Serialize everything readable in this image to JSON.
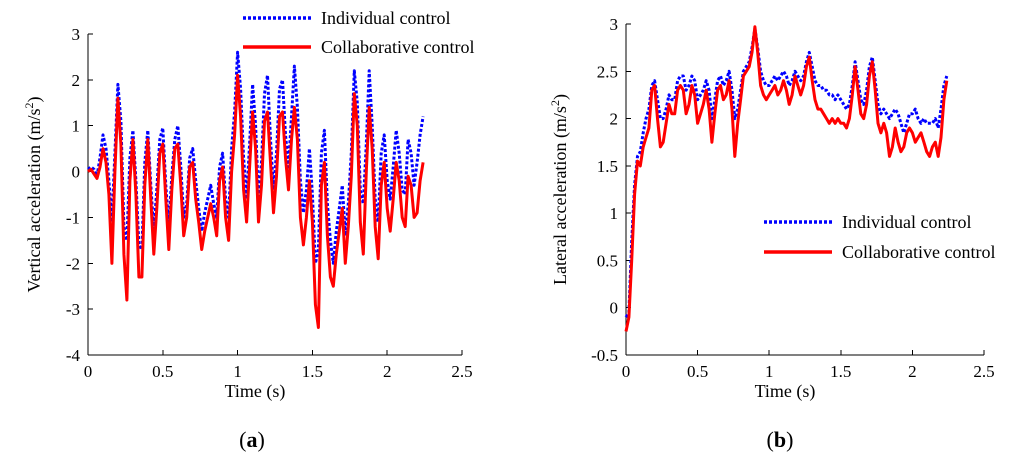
{
  "chart_data": [
    {
      "type": "line",
      "panel_label_open": "(",
      "panel_label": "a",
      "panel_label_close": ")",
      "xlabel": "Time (s)",
      "ylabel": "Vertical acceleration (m/s",
      "ylabel_sup": "2",
      "ylabel_close": ")",
      "xlim": [
        0,
        2.5
      ],
      "ylim": [
        -4,
        3
      ],
      "xticks": [
        0,
        0.5,
        1,
        1.5,
        2,
        2.5
      ],
      "xtick_labels": [
        "0",
        "0.5",
        "1",
        "1.5",
        "2",
        "2.5"
      ],
      "yticks": [
        -4,
        -3,
        -2,
        -1,
        0,
        1,
        2,
        3
      ],
      "ytick_labels": [
        "-4",
        "-3",
        "-2",
        "-1",
        "0",
        "1",
        "2",
        "3"
      ],
      "legend_position": "top-right",
      "series": [
        {
          "name": "Individual control",
          "color": "#0000ff",
          "style": "dotted",
          "x": [
            0,
            0.02,
            0.04,
            0.06,
            0.08,
            0.1,
            0.12,
            0.14,
            0.16,
            0.18,
            0.2,
            0.22,
            0.24,
            0.26,
            0.28,
            0.3,
            0.32,
            0.34,
            0.36,
            0.38,
            0.4,
            0.42,
            0.44,
            0.46,
            0.48,
            0.5,
            0.52,
            0.54,
            0.56,
            0.58,
            0.6,
            0.62,
            0.64,
            0.66,
            0.68,
            0.7,
            0.72,
            0.74,
            0.76,
            0.78,
            0.8,
            0.82,
            0.84,
            0.86,
            0.88,
            0.9,
            0.92,
            0.94,
            0.96,
            0.98,
            1.0,
            1.02,
            1.04,
            1.06,
            1.08,
            1.1,
            1.12,
            1.14,
            1.16,
            1.18,
            1.2,
            1.22,
            1.24,
            1.26,
            1.28,
            1.3,
            1.32,
            1.34,
            1.36,
            1.38,
            1.4,
            1.42,
            1.44,
            1.46,
            1.48,
            1.5,
            1.52,
            1.54,
            1.56,
            1.58,
            1.6,
            1.62,
            1.64,
            1.66,
            1.68,
            1.7,
            1.72,
            1.74,
            1.76,
            1.78,
            1.8,
            1.82,
            1.84,
            1.86,
            1.88,
            1.9,
            1.92,
            1.94,
            1.96,
            1.98,
            2.0,
            2.02,
            2.04,
            2.06,
            2.08,
            2.1,
            2.12,
            2.14,
            2.16,
            2.18,
            2.2,
            2.22,
            2.24
          ],
          "values": [
            0.05,
            0.1,
            0.05,
            -0.1,
            0.3,
            0.8,
            0.5,
            -0.2,
            -1.1,
            0.4,
            1.9,
            1.1,
            -1.2,
            -1.5,
            0.3,
            0.9,
            -0.2,
            -1.6,
            -1.7,
            0.2,
            0.9,
            -0.3,
            -1.3,
            -0.4,
            0.7,
            0.95,
            -0.3,
            -1.2,
            -0.1,
            0.7,
            1.0,
            0.1,
            -1.0,
            -0.7,
            0.3,
            0.5,
            -0.2,
            -0.8,
            -1.3,
            -0.9,
            -0.6,
            -0.3,
            -0.7,
            -1.0,
            0.1,
            0.4,
            -0.6,
            -1.0,
            0.5,
            1.3,
            2.6,
            1.8,
            0.3,
            -0.6,
            0.6,
            1.9,
            1.0,
            -0.6,
            0.2,
            1.7,
            2.1,
            0.7,
            -0.4,
            0.4,
            1.8,
            2.0,
            0.8,
            0.1,
            1.2,
            2.3,
            1.4,
            -0.2,
            -0.9,
            -0.4,
            0.5,
            -0.5,
            -2.0,
            -1.7,
            0.4,
            0.9,
            -0.7,
            -1.5,
            -2.0,
            -1.3,
            -0.8,
            -0.3,
            -1.4,
            -0.7,
            0.4,
            2.2,
            1.5,
            -0.4,
            -0.7,
            0.6,
            2.2,
            1.0,
            -0.6,
            -1.1,
            0.4,
            0.8,
            -0.2,
            -0.6,
            0.1,
            0.9,
            0.4,
            -0.4,
            -0.5,
            0.7,
            0.4,
            -0.3,
            0.2,
            0.8,
            1.2
          ]
        },
        {
          "name": "Collaborative control",
          "color": "#ff0000",
          "style": "solid",
          "x": [
            0,
            0.02,
            0.04,
            0.06,
            0.08,
            0.1,
            0.12,
            0.14,
            0.16,
            0.18,
            0.2,
            0.22,
            0.24,
            0.26,
            0.28,
            0.3,
            0.32,
            0.34,
            0.36,
            0.38,
            0.4,
            0.42,
            0.44,
            0.46,
            0.48,
            0.5,
            0.52,
            0.54,
            0.56,
            0.58,
            0.6,
            0.62,
            0.64,
            0.66,
            0.68,
            0.7,
            0.72,
            0.74,
            0.76,
            0.78,
            0.8,
            0.82,
            0.84,
            0.86,
            0.88,
            0.9,
            0.92,
            0.94,
            0.96,
            0.98,
            1.0,
            1.02,
            1.04,
            1.06,
            1.08,
            1.1,
            1.12,
            1.14,
            1.16,
            1.18,
            1.2,
            1.22,
            1.24,
            1.26,
            1.28,
            1.3,
            1.32,
            1.34,
            1.36,
            1.38,
            1.4,
            1.42,
            1.44,
            1.46,
            1.48,
            1.5,
            1.52,
            1.54,
            1.56,
            1.58,
            1.6,
            1.62,
            1.64,
            1.66,
            1.68,
            1.7,
            1.72,
            1.74,
            1.76,
            1.78,
            1.8,
            1.82,
            1.84,
            1.86,
            1.88,
            1.9,
            1.92,
            1.94,
            1.96,
            1.98,
            2.0,
            2.02,
            2.04,
            2.06,
            2.08,
            2.1,
            2.12,
            2.14,
            2.16,
            2.18,
            2.2,
            2.22,
            2.24
          ],
          "values": [
            0.0,
            0.05,
            -0.05,
            -0.15,
            0.1,
            0.5,
            0.2,
            -0.5,
            -2.0,
            0.0,
            1.6,
            0.6,
            -1.8,
            -2.8,
            -0.2,
            0.7,
            -0.5,
            -2.3,
            -2.3,
            -0.3,
            0.7,
            -0.6,
            -1.8,
            -0.8,
            0.4,
            0.6,
            -0.6,
            -1.7,
            -0.4,
            0.5,
            0.6,
            -0.3,
            -1.4,
            -1.0,
            0.1,
            0.2,
            -0.6,
            -1.1,
            -1.7,
            -1.3,
            -1.0,
            -0.7,
            -1.0,
            -1.4,
            -0.2,
            0.1,
            -1.0,
            -1.5,
            0.0,
            0.8,
            2.1,
            1.2,
            -0.4,
            -1.1,
            0.1,
            1.3,
            0.5,
            -1.1,
            -0.3,
            1.1,
            1.3,
            0.2,
            -0.9,
            -0.1,
            1.2,
            1.3,
            0.3,
            -0.4,
            0.7,
            1.4,
            0.7,
            -1.0,
            -1.6,
            -1.0,
            -0.2,
            -1.1,
            -2.9,
            -3.4,
            -0.3,
            0.2,
            -1.4,
            -2.3,
            -2.5,
            -1.8,
            -1.3,
            -0.8,
            -2.0,
            -1.2,
            -0.1,
            1.7,
            1.0,
            -1.1,
            -1.8,
            0.0,
            1.4,
            0.5,
            -1.2,
            -1.9,
            -0.3,
            0.2,
            -0.8,
            -1.3,
            -0.6,
            0.2,
            -0.2,
            -1.0,
            -1.2,
            -0.1,
            -0.3,
            -1.0,
            -0.9,
            -0.2,
            0.2
          ]
        }
      ]
    },
    {
      "type": "line",
      "panel_label_open": "(",
      "panel_label": "b",
      "panel_label_close": ")",
      "xlabel": "Time (s)",
      "ylabel": "Lateral acceleration (m/s",
      "ylabel_sup": "2",
      "ylabel_close": ")",
      "xlim": [
        0,
        2.5
      ],
      "ylim": [
        -0.5,
        3
      ],
      "xticks": [
        0,
        0.5,
        1,
        1.5,
        2,
        2.5
      ],
      "xtick_labels": [
        "0",
        "0.5",
        "1",
        "1.5",
        "2",
        "2.5"
      ],
      "yticks": [
        -0.5,
        0,
        0.5,
        1,
        1.5,
        2,
        2.5,
        3
      ],
      "ytick_labels": [
        "-0.5",
        "0",
        "0.5",
        "1",
        "1.5",
        "2",
        "2.5",
        "3"
      ],
      "legend_position": "center-right",
      "series": [
        {
          "name": "Individual control",
          "color": "#0000ff",
          "style": "dotted",
          "x": [
            0,
            0.02,
            0.04,
            0.06,
            0.08,
            0.1,
            0.12,
            0.14,
            0.16,
            0.18,
            0.2,
            0.22,
            0.24,
            0.26,
            0.28,
            0.3,
            0.32,
            0.34,
            0.36,
            0.38,
            0.4,
            0.42,
            0.44,
            0.46,
            0.48,
            0.5,
            0.52,
            0.54,
            0.56,
            0.58,
            0.6,
            0.62,
            0.64,
            0.66,
            0.68,
            0.7,
            0.72,
            0.74,
            0.76,
            0.78,
            0.8,
            0.82,
            0.84,
            0.86,
            0.88,
            0.9,
            0.92,
            0.94,
            0.96,
            0.98,
            1.0,
            1.02,
            1.04,
            1.06,
            1.08,
            1.1,
            1.12,
            1.14,
            1.16,
            1.18,
            1.2,
            1.22,
            1.24,
            1.26,
            1.28,
            1.3,
            1.32,
            1.34,
            1.36,
            1.38,
            1.4,
            1.42,
            1.44,
            1.46,
            1.48,
            1.5,
            1.52,
            1.54,
            1.56,
            1.58,
            1.6,
            1.62,
            1.64,
            1.66,
            1.68,
            1.7,
            1.72,
            1.74,
            1.76,
            1.78,
            1.8,
            1.82,
            1.84,
            1.86,
            1.88,
            1.9,
            1.92,
            1.94,
            1.96,
            1.98,
            2.0,
            2.02,
            2.04,
            2.06,
            2.08,
            2.1,
            2.12,
            2.14,
            2.16,
            2.18,
            2.2,
            2.22,
            2.24
          ],
          "values": [
            -0.1,
            -0.05,
            0.7,
            1.3,
            1.6,
            1.65,
            1.85,
            2.0,
            2.1,
            2.35,
            2.4,
            2.2,
            2.0,
            2.0,
            2.1,
            2.25,
            2.2,
            2.2,
            2.4,
            2.45,
            2.45,
            2.3,
            2.35,
            2.45,
            2.4,
            2.2,
            2.25,
            2.3,
            2.4,
            2.3,
            2.0,
            2.2,
            2.4,
            2.45,
            2.35,
            2.4,
            2.5,
            2.3,
            2.0,
            2.1,
            2.3,
            2.5,
            2.55,
            2.6,
            2.75,
            2.95,
            2.75,
            2.5,
            2.4,
            2.35,
            2.35,
            2.4,
            2.45,
            2.4,
            2.45,
            2.5,
            2.45,
            2.35,
            2.4,
            2.5,
            2.45,
            2.4,
            2.45,
            2.6,
            2.7,
            2.55,
            2.4,
            2.35,
            2.35,
            2.3,
            2.3,
            2.25,
            2.25,
            2.2,
            2.25,
            2.2,
            2.15,
            2.1,
            2.15,
            2.35,
            2.6,
            2.4,
            2.2,
            2.15,
            2.3,
            2.55,
            2.65,
            2.4,
            2.15,
            2.05,
            2.1,
            2.05,
            2.0,
            2.05,
            2.1,
            2.05,
            1.95,
            1.85,
            1.95,
            2.05,
            2.05,
            2.1,
            2.0,
            1.95,
            2.0,
            1.95,
            1.95,
            1.95,
            2.0,
            1.9,
            2.1,
            2.35,
            2.45
          ]
        },
        {
          "name": "Collaborative control",
          "color": "#ff0000",
          "style": "solid",
          "x": [
            0,
            0.02,
            0.04,
            0.06,
            0.08,
            0.1,
            0.12,
            0.14,
            0.16,
            0.18,
            0.2,
            0.22,
            0.24,
            0.26,
            0.28,
            0.3,
            0.32,
            0.34,
            0.36,
            0.38,
            0.4,
            0.42,
            0.44,
            0.46,
            0.48,
            0.5,
            0.52,
            0.54,
            0.56,
            0.58,
            0.6,
            0.62,
            0.64,
            0.66,
            0.68,
            0.7,
            0.72,
            0.74,
            0.76,
            0.78,
            0.8,
            0.82,
            0.84,
            0.86,
            0.88,
            0.9,
            0.92,
            0.94,
            0.96,
            0.98,
            1.0,
            1.02,
            1.04,
            1.06,
            1.08,
            1.1,
            1.12,
            1.14,
            1.16,
            1.18,
            1.2,
            1.22,
            1.24,
            1.26,
            1.28,
            1.3,
            1.32,
            1.34,
            1.36,
            1.38,
            1.4,
            1.42,
            1.44,
            1.46,
            1.48,
            1.5,
            1.52,
            1.54,
            1.56,
            1.58,
            1.6,
            1.62,
            1.64,
            1.66,
            1.68,
            1.7,
            1.72,
            1.74,
            1.76,
            1.78,
            1.8,
            1.82,
            1.84,
            1.86,
            1.88,
            1.9,
            1.92,
            1.94,
            1.96,
            1.98,
            2.0,
            2.02,
            2.04,
            2.06,
            2.08,
            2.1,
            2.12,
            2.14,
            2.16,
            2.18,
            2.2,
            2.22,
            2.24
          ],
          "values": [
            -0.25,
            -0.1,
            0.5,
            1.2,
            1.55,
            1.5,
            1.7,
            1.8,
            1.9,
            2.3,
            2.35,
            2.0,
            1.7,
            1.75,
            1.95,
            2.15,
            2.05,
            2.05,
            2.3,
            2.35,
            2.3,
            2.05,
            2.15,
            2.35,
            2.25,
            1.95,
            2.05,
            2.15,
            2.3,
            2.1,
            1.75,
            2.05,
            2.3,
            2.35,
            2.2,
            2.25,
            2.4,
            2.1,
            1.6,
            1.95,
            2.2,
            2.45,
            2.5,
            2.55,
            2.7,
            2.97,
            2.7,
            2.35,
            2.25,
            2.2,
            2.25,
            2.3,
            2.35,
            2.25,
            2.3,
            2.4,
            2.3,
            2.15,
            2.25,
            2.45,
            2.35,
            2.25,
            2.35,
            2.55,
            2.65,
            2.4,
            2.2,
            2.1,
            2.1,
            2.05,
            2.0,
            1.95,
            2.0,
            1.95,
            2.0,
            1.95,
            1.95,
            1.9,
            2.0,
            2.25,
            2.55,
            2.3,
            2.05,
            2.0,
            2.15,
            2.45,
            2.6,
            2.3,
            1.95,
            1.85,
            1.95,
            1.85,
            1.6,
            1.7,
            1.9,
            1.75,
            1.65,
            1.7,
            1.85,
            1.9,
            1.85,
            1.75,
            1.8,
            1.85,
            1.75,
            1.65,
            1.6,
            1.7,
            1.75,
            1.6,
            1.8,
            2.2,
            2.4
          ]
        }
      ]
    }
  ]
}
